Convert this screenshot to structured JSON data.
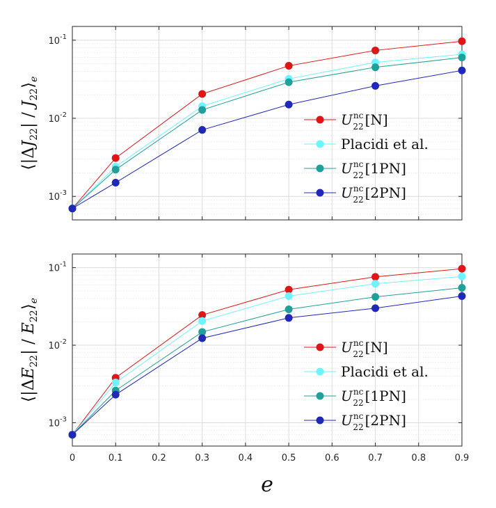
{
  "chart_data": [
    {
      "type": "line",
      "ylabel": "⟨|ΔJ22| / J22⟩e",
      "yscale": "log",
      "ylim": [
        0.0005,
        0.15
      ],
      "xlim": [
        0,
        0.9
      ],
      "grid": true,
      "legend_position": "bottom-right",
      "y_tick_labels": [
        "10-3",
        "10-2",
        "10-1"
      ],
      "x": [
        0,
        0.1,
        0.3,
        0.5,
        0.7,
        0.9
      ],
      "series": [
        {
          "name": "U22nc[N]",
          "color": "#e01515",
          "values": [
            0.0007,
            0.0031,
            0.0205,
            0.047,
            0.074,
            0.097
          ]
        },
        {
          "name": "Placidi et al.",
          "color": "#6ff3ff",
          "values": [
            0.0007,
            0.0024,
            0.0143,
            0.032,
            0.052,
            0.066
          ]
        },
        {
          "name": "U22nc[1PN]",
          "color": "#20a09a",
          "values": [
            0.0007,
            0.0022,
            0.0128,
            0.029,
            0.045,
            0.06
          ]
        },
        {
          "name": "U22nc[2PN]",
          "color": "#2028b8",
          "values": [
            0.0007,
            0.0015,
            0.0071,
            0.015,
            0.026,
            0.041
          ]
        }
      ]
    },
    {
      "type": "line",
      "xlabel": "e",
      "ylabel": "⟨|ΔE22| / E22⟩e",
      "yscale": "log",
      "ylim": [
        0.0005,
        0.15
      ],
      "xlim": [
        0,
        0.9
      ],
      "grid": true,
      "legend_position": "bottom-right",
      "x_tick_labels": [
        "0",
        "0.1",
        "0.2",
        "0.3",
        "0.4",
        "0.5",
        "0.6",
        "0.7",
        "0.8",
        "0.9"
      ],
      "y_tick_labels": [
        "10-3",
        "10-2",
        "10-1"
      ],
      "x": [
        0,
        0.1,
        0.3,
        0.5,
        0.7,
        0.9
      ],
      "series": [
        {
          "name": "U22nc[N]",
          "color": "#e01515",
          "values": [
            0.0007,
            0.0038,
            0.0245,
            0.052,
            0.076,
            0.097
          ]
        },
        {
          "name": "Placidi et al.",
          "color": "#6ff3ff",
          "values": [
            0.0007,
            0.0033,
            0.0205,
            0.043,
            0.062,
            0.077
          ]
        },
        {
          "name": "U22nc[1PN]",
          "color": "#20a09a",
          "values": [
            0.0007,
            0.0026,
            0.0148,
            0.029,
            0.042,
            0.055
          ]
        },
        {
          "name": "U22nc[2PN]",
          "color": "#2028b8",
          "values": [
            0.0007,
            0.0023,
            0.0123,
            0.0225,
            0.03,
            0.043
          ]
        }
      ]
    }
  ]
}
